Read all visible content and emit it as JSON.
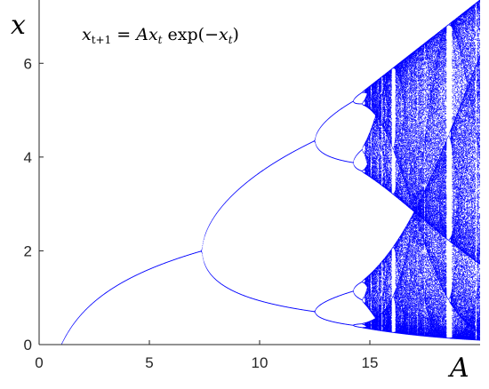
{
  "chart_data": {
    "type": "scatter",
    "title": "",
    "annotation": {
      "base": "x",
      "base_sub": "t+1",
      "eq": " = ",
      "coef": "Ax",
      "coef_sub": "t",
      "func": " exp(",
      "neg": "−x",
      "neg_sub": "t",
      "close": ")"
    },
    "xlabel": "A",
    "ylabel": "x",
    "xlim": [
      0,
      20
    ],
    "ylim": [
      0,
      7.35
    ],
    "xticks": [
      0,
      5,
      10,
      15
    ],
    "yticks": [
      0,
      2,
      4,
      6
    ],
    "xtick_labels": [
      "0",
      "5",
      "10",
      "15"
    ],
    "ytick_labels": [
      "0",
      "2",
      "4",
      "6"
    ],
    "grid": false,
    "color": "#0000ff",
    "map": "x_{t+1} = A x_t exp(-x_t)",
    "A_range": [
      0,
      20
    ],
    "fixed_point": "x = ln(A) for 1 < A < 7.39",
    "period_doubling_points": [
      7.39,
      12.5,
      14.3
    ]
  }
}
